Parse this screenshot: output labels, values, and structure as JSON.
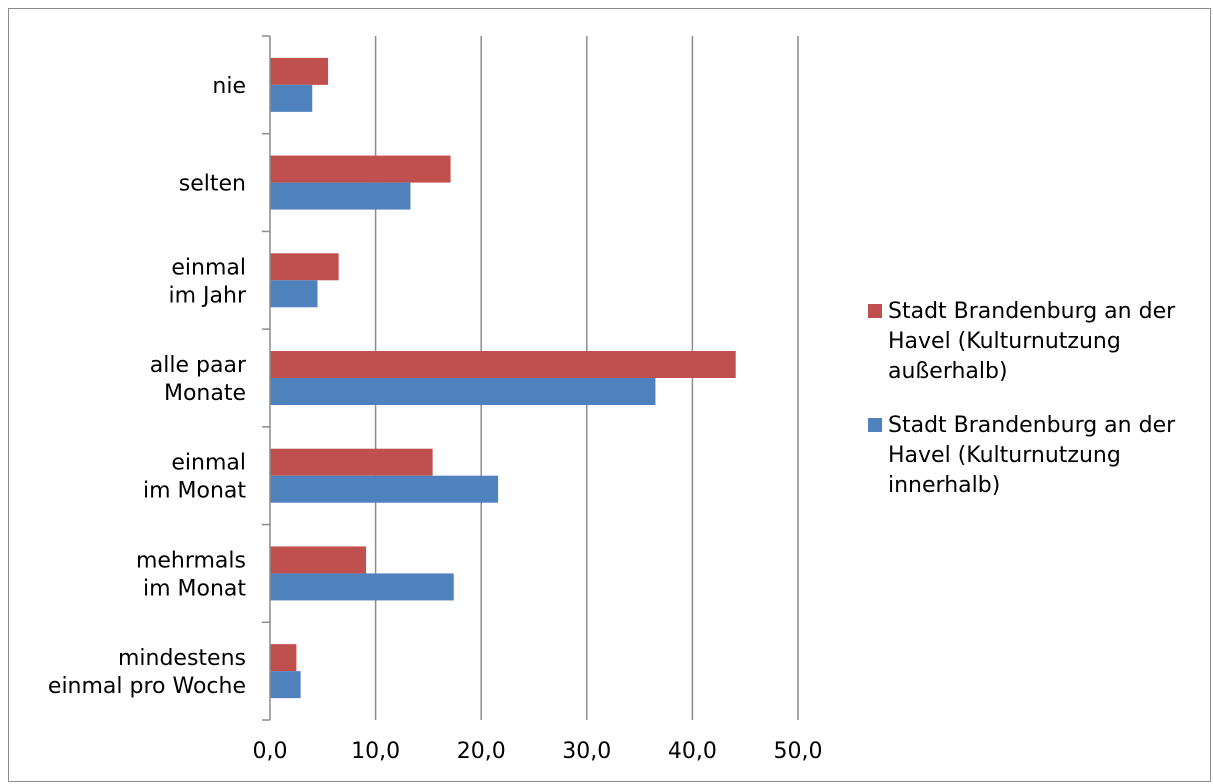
{
  "chart_data": {
    "type": "bar",
    "orientation": "horizontal",
    "categories": [
      [
        "nie"
      ],
      [
        "selten"
      ],
      [
        "einmal",
        "im Jahr"
      ],
      [
        "alle paar",
        "Monate"
      ],
      [
        "einmal",
        "im Monat"
      ],
      [
        "mehrmals",
        "im Monat"
      ],
      [
        "mindestens",
        "einmal pro Woche"
      ]
    ],
    "series": [
      {
        "name": "Stadt Brandenburg an der Havel (Kulturnutzung außerhalb)",
        "legend_lines": [
          "Stadt Brandenburg an der",
          "Havel (Kulturnutzung",
          "außerhalb)"
        ],
        "color": "#c0504d",
        "values": [
          5.5,
          17.1,
          6.5,
          44.1,
          15.4,
          9.1,
          2.5
        ]
      },
      {
        "name": "Stadt Brandenburg an der Havel (Kulturnutzung innerhalb)",
        "legend_lines": [
          "Stadt Brandenburg an der",
          "Havel (Kulturnutzung",
          "innerhalb)"
        ],
        "color": "#4f81bd",
        "values": [
          4.0,
          13.3,
          4.5,
          36.5,
          21.6,
          17.4,
          2.9
        ]
      }
    ],
    "xlim": [
      0,
      50
    ],
    "xticks": [
      0,
      10,
      20,
      30,
      40,
      50
    ],
    "xtick_labels": [
      "0,0",
      "10,0",
      "20,0",
      "30,0",
      "40,0",
      "50,0"
    ],
    "grid": true,
    "legend_position": "right",
    "title": "",
    "xlabel": "",
    "ylabel": ""
  }
}
